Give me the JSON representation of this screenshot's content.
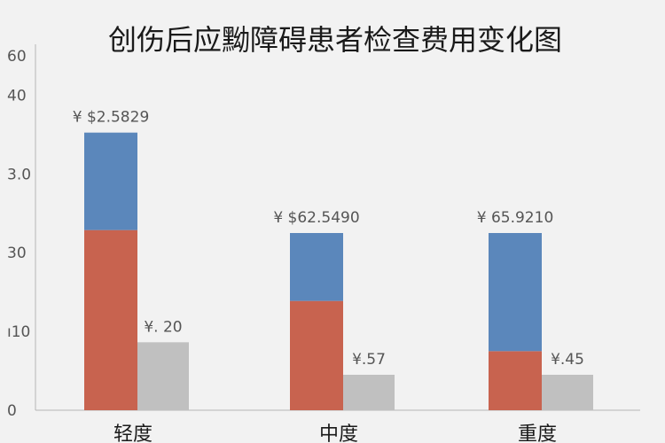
{
  "chart_data": {
    "type": "bar",
    "stacked_first_series": true,
    "title": "创伤后应黝障碍患者检查费用变化图",
    "xlabel": "",
    "ylabel": "",
    "ylim": [
      0,
      60
    ],
    "yticks": [
      "0",
      "ı10",
      "30",
      "3.0",
      "40",
      "60"
    ],
    "categories": [
      "轻度",
      "中度",
      "重度"
    ],
    "series": [
      {
        "values": [
          30.5,
          18.5,
          10.0
        ],
        "color": "#c8634f",
        "stack": "A"
      },
      {
        "values": [
          16.5,
          11.5,
          20.0
        ],
        "color": "#5b87bb",
        "stack": "A"
      },
      {
        "values": [
          11.5,
          6.0,
          6.0
        ],
        "color": "#c0c0c0",
        "stack": "B"
      }
    ],
    "stack_labels": [
      "¥ $2.5829",
      "¥ $62.5490",
      "¥ 65.9210"
    ],
    "gray_labels": [
      "¥. 20",
      "¥.57",
      "¥.45"
    ],
    "grid": false
  }
}
